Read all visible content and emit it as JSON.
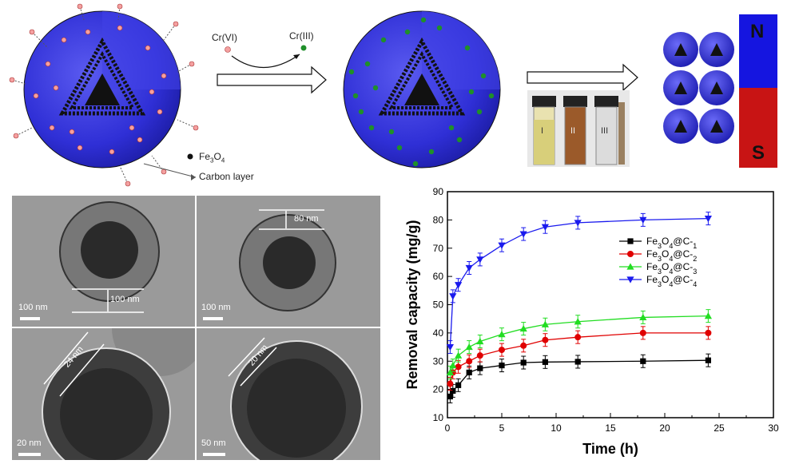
{
  "scheme": {
    "reaction_from": "Cr(VI)",
    "reaction_to": "Cr(III)",
    "legend_fe3o4": "Fe3O4",
    "legend_carbon": "Carbon layer",
    "vial_labels": [
      "I",
      "II",
      "III"
    ],
    "magnet_north": "N",
    "magnet_south": "S",
    "colors": {
      "sphere": "#2f2fd6",
      "cr6": "#f4a0a0",
      "cr3": "#1f8f2a",
      "north": "#1515e0",
      "south": "#c81414"
    }
  },
  "tem": {
    "panels": [
      {
        "scale_label": "100 nm",
        "measure_label": "100 nm"
      },
      {
        "scale_label": "100 nm",
        "measure_label": "80 nm"
      },
      {
        "scale_label": "20 nm",
        "measure_label": "24 nm"
      },
      {
        "scale_label": "50 nm",
        "measure_label": "20 nm"
      }
    ]
  },
  "chart_data": {
    "type": "line",
    "xlabel": "Time (h)",
    "ylabel": "Removal capacity (mg/g)",
    "xlim": [
      0,
      30
    ],
    "ylim": [
      10,
      90
    ],
    "xticks": [
      0,
      5,
      10,
      15,
      20,
      25,
      30
    ],
    "yticks": [
      10,
      20,
      30,
      40,
      50,
      60,
      70,
      80,
      90
    ],
    "legend_position": "right-center",
    "x": [
      0.25,
      0.5,
      1,
      2,
      3,
      5,
      7,
      9,
      12,
      18,
      24
    ],
    "series": [
      {
        "name": "Fe3O4@C-1",
        "color": "#000000",
        "marker": "square",
        "values": [
          17.5,
          19.5,
          21.5,
          26,
          27.5,
          28.5,
          29.5,
          29.7,
          29.8,
          30,
          30.3
        ]
      },
      {
        "name": "Fe3O4@C-2",
        "color": "#e00000",
        "marker": "circle",
        "values": [
          22,
          26,
          28,
          30,
          32,
          34,
          35.5,
          37.5,
          38.5,
          40,
          40
        ]
      },
      {
        "name": "Fe3O4@C-3",
        "color": "#22dd22",
        "marker": "triangle-up",
        "values": [
          26,
          28.5,
          32,
          35,
          37,
          39.5,
          41.5,
          43,
          44,
          45.5,
          46
        ]
      },
      {
        "name": "Fe3O4@C-4",
        "color": "#1a1aee",
        "marker": "triangle-down",
        "values": [
          35,
          53,
          57,
          63,
          66,
          71,
          75,
          77.5,
          79,
          80,
          80.5
        ]
      }
    ]
  }
}
